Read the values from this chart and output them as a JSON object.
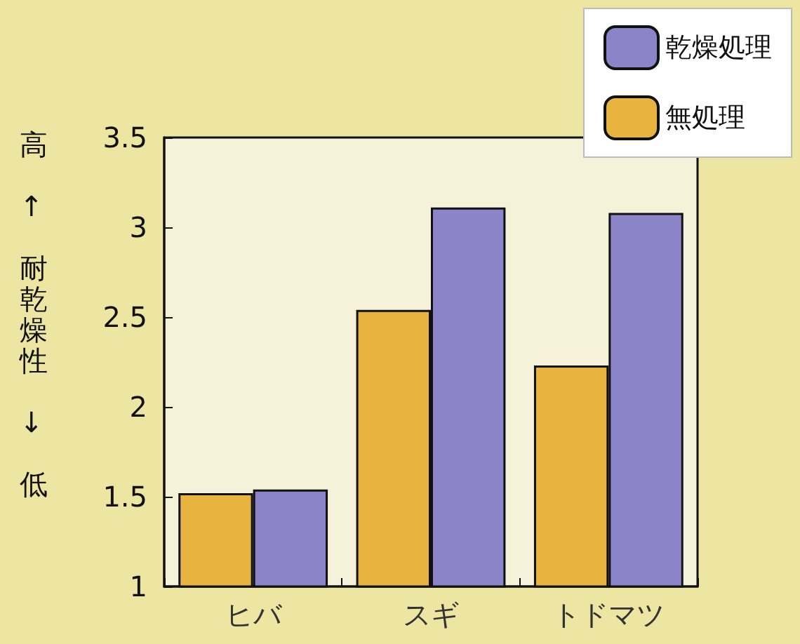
{
  "chart_data": {
    "type": "bar",
    "ylabel": "高 ↑ 耐乾燥性 ↓ 低",
    "categories": [
      "ヒバ",
      "スギ",
      "トドマツ"
    ],
    "series": [
      {
        "name": "無処理",
        "color": "#e8b33e",
        "values": [
          1.52,
          2.54,
          2.23
        ]
      },
      {
        "name": "乾燥処理",
        "color": "#8b84c8",
        "values": [
          1.54,
          3.11,
          3.08
        ]
      }
    ],
    "ylim": [
      1,
      3.5
    ],
    "yticks": [
      1,
      1.5,
      2,
      2.5,
      3,
      3.5
    ],
    "grid": false,
    "legend": "top right"
  }
}
